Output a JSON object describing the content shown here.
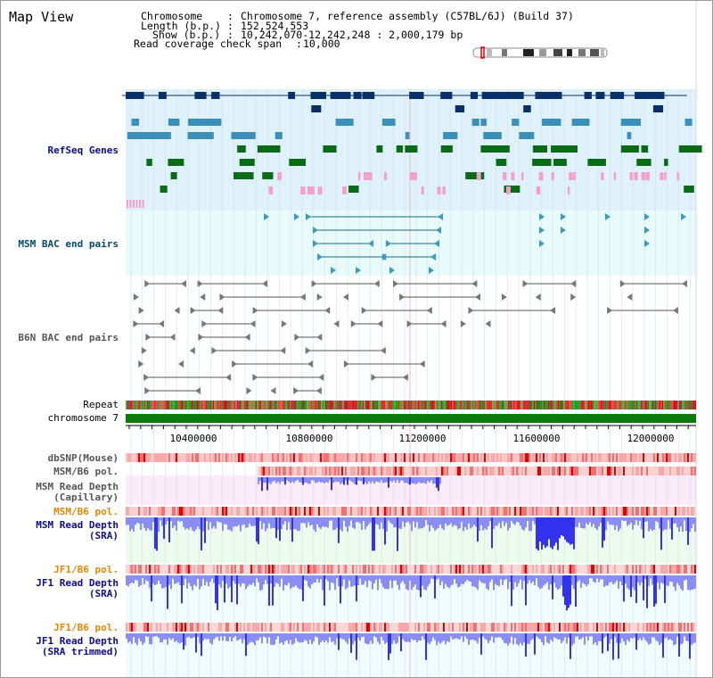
{
  "title": "Map View",
  "header": {
    "chromosome_key": "Chromosome",
    "chromosome_value": "Chromosome 7, reference assembly (C57BL/6J) (Build 37)",
    "length_key": "Length (b.p.)",
    "length_value": "152,524,553",
    "show_key": "Show (b.p.)",
    "show_value": "10,242,070-12,242,248 : 2,000,179 bp",
    "coverage_key": "Read coverage check span",
    "coverage_value": "10,000"
  },
  "tracks": {
    "refseq": "RefSeq Genes",
    "msm_bac": "MSM BAC end pairs",
    "b6n_bac": "B6N BAC end pairs",
    "repeat": "Repeat",
    "chromosome": "chromosome 7",
    "dbsnp": "dbSNP(Mouse)",
    "msm_pol_1": "MSM/B6 pol.",
    "msm_depth_cap_1": "MSM Read Depth",
    "msm_depth_cap_2": "(Capillary)",
    "msm_pol_2": "MSM/B6 pol.",
    "msm_depth_sra_1": "MSM Read Depth",
    "msm_depth_sra_2": "(SRA)",
    "jf1_pol_1": "JF1/B6 pol.",
    "jf1_depth_sra_1": "JF1 Read Depth",
    "jf1_depth_sra_2": "(SRA)",
    "jf1_pol_2": "JF1/B6 pol.",
    "jf1_depth_trim_1": "JF1 Read Depth",
    "jf1_depth_trim_2": "(SRA trimmed)"
  },
  "axis": {
    "ticks": [
      "10400000",
      "10800000",
      "11200000",
      "11600000",
      "12000000"
    ],
    "range": [
      10242070,
      12242248
    ]
  },
  "colors": {
    "refseq_bg": "#dff1fb",
    "msm_bg": "#e9fafa",
    "navy_gene": "#08306b",
    "blue_gene": "#3c8fb8",
    "green_gene": "#0a6b16",
    "pink_gene": "#f4a0c8",
    "msm_label": "#004870",
    "read_depth_label": "#0c0c8c",
    "pol_label_msm": "#555555",
    "pol_label_orange": "#e08800",
    "depth_blue": "#3333ee"
  }
}
